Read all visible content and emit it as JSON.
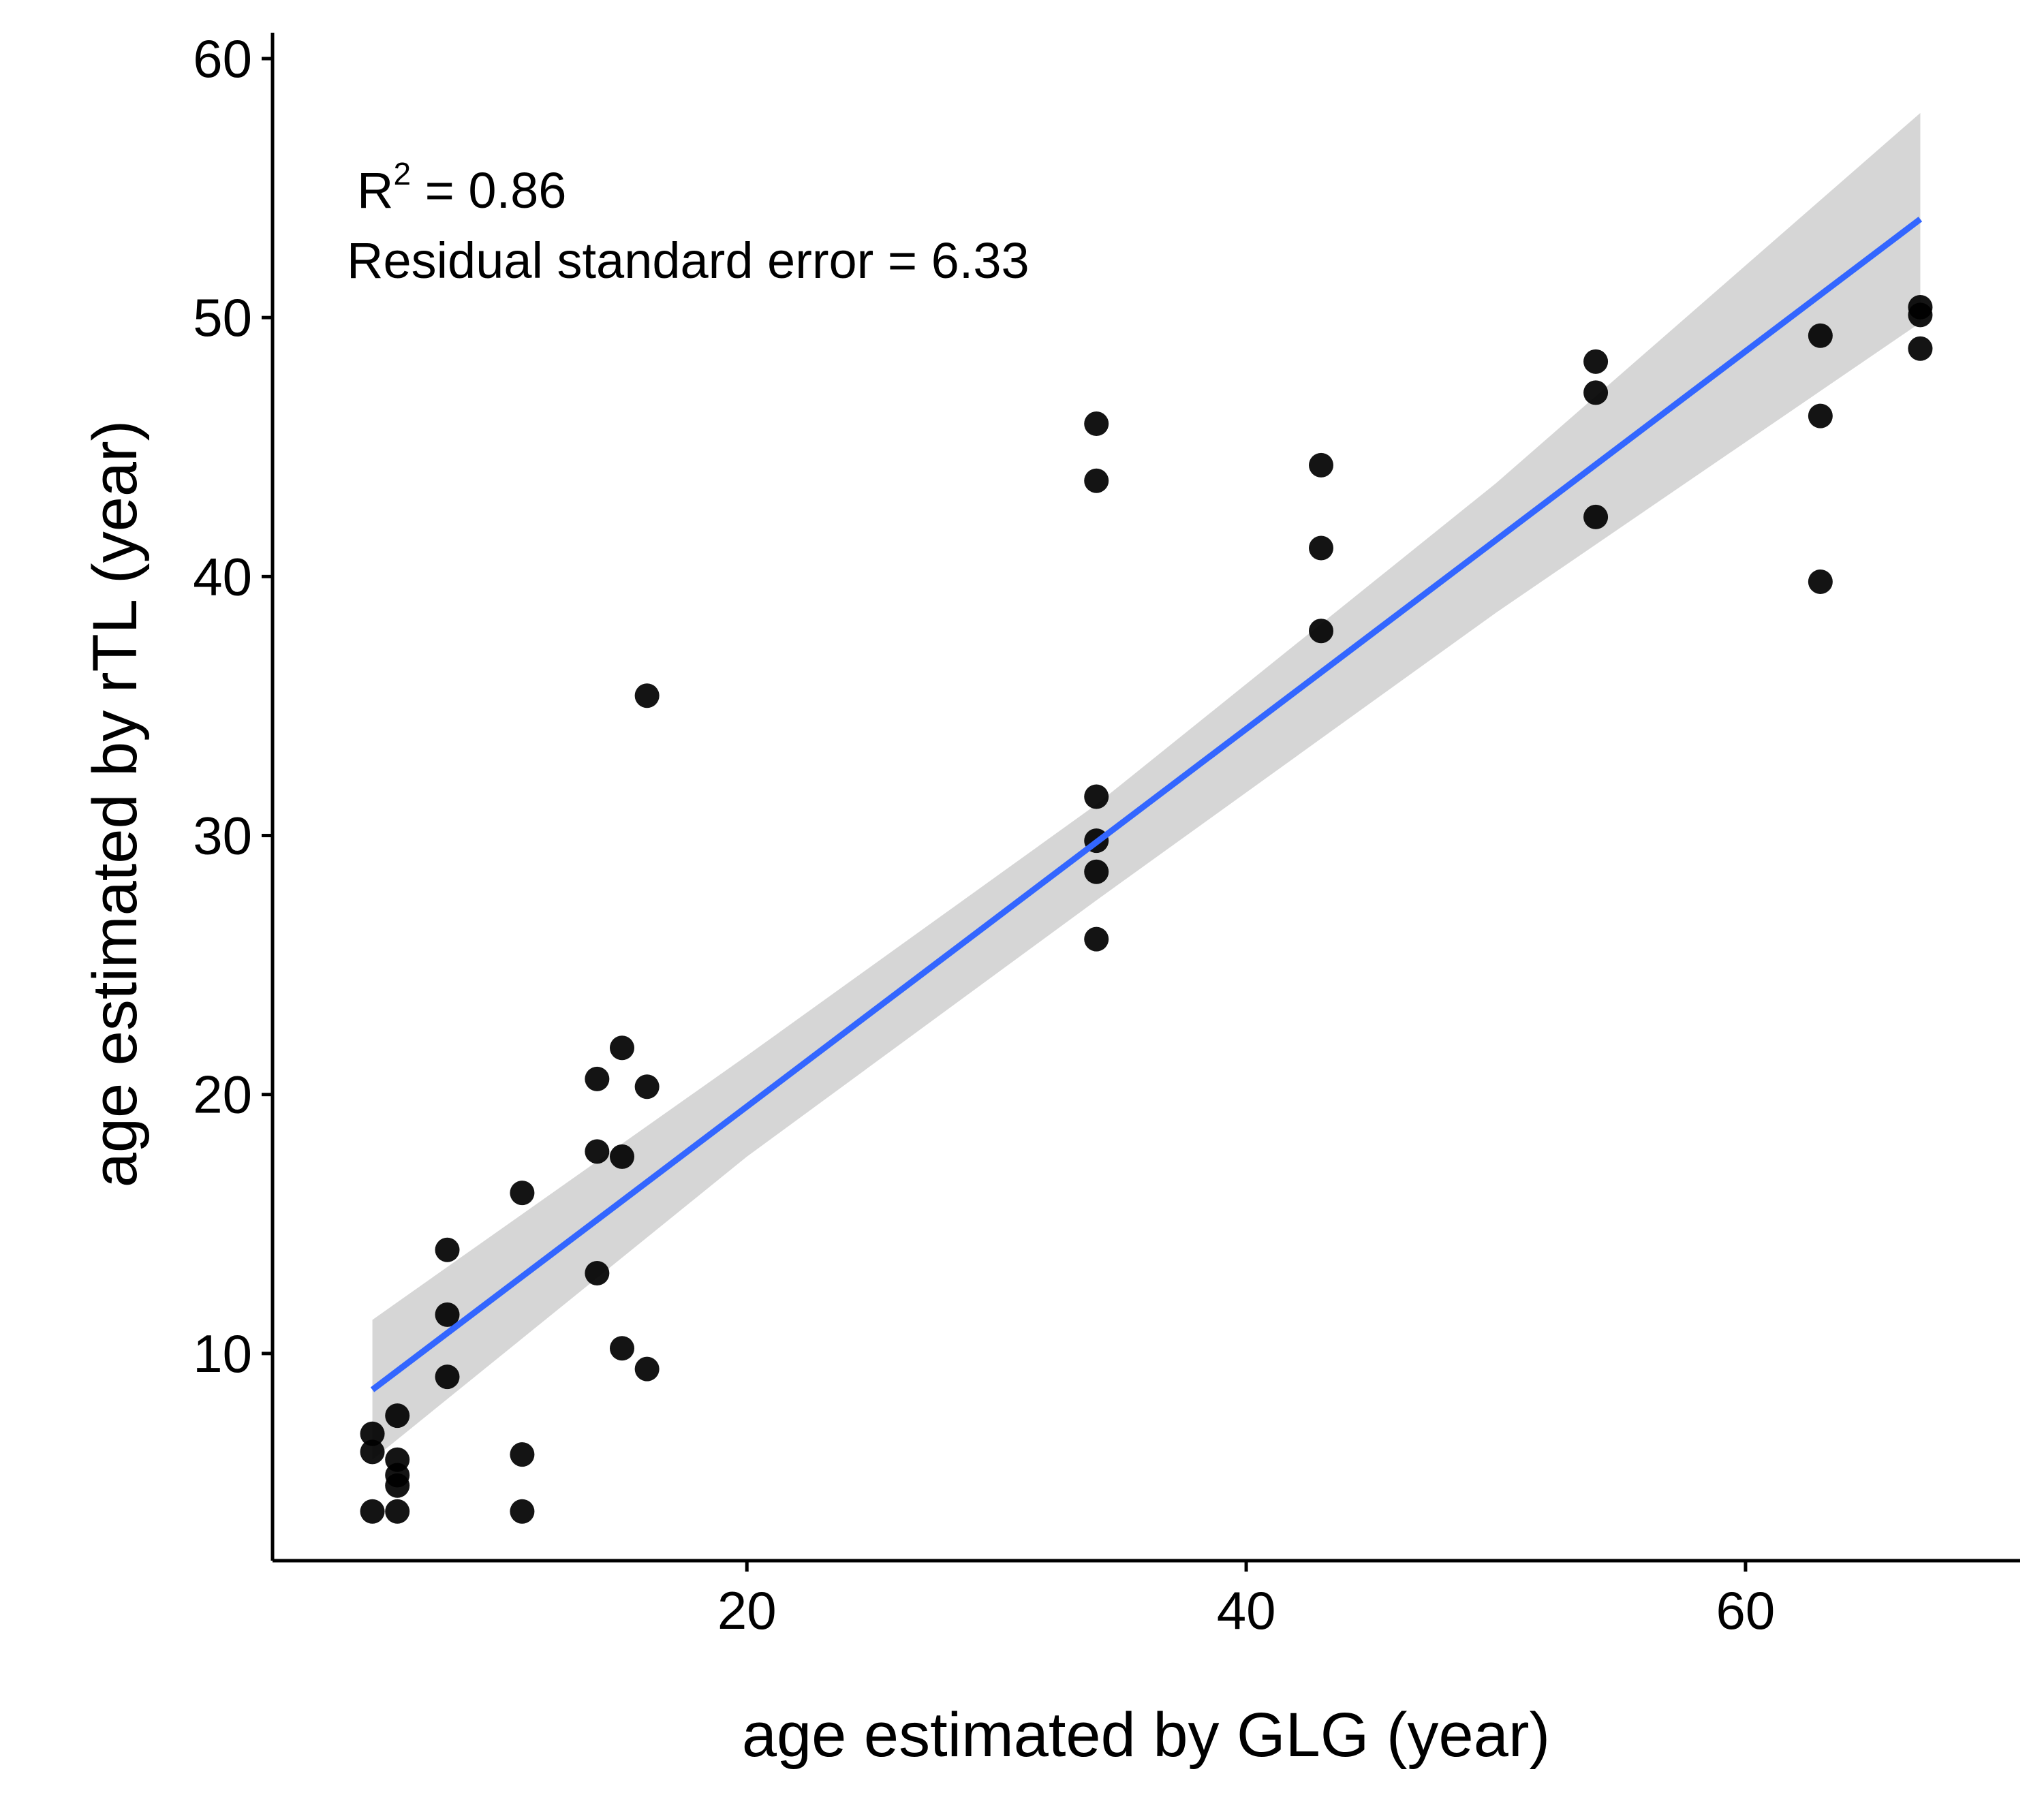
{
  "chart_data": {
    "type": "scatter",
    "xlabel": "age estimated by GLG (year)",
    "ylabel": "age estimated by rTL (year)",
    "xlim": [
      1,
      71
    ],
    "ylim": [
      2,
      61
    ],
    "x_ticks": [
      20,
      40,
      60
    ],
    "y_ticks": [
      10,
      20,
      30,
      40,
      50,
      60
    ],
    "grid": false,
    "annotation": {
      "r2_label": "R",
      "r2_sup": "2",
      "r2_value": " = 0.86",
      "rse": "Residual standard error = 6.33"
    },
    "points": [
      [
        5,
        6.9
      ],
      [
        5,
        6.2
      ],
      [
        5,
        3.9
      ],
      [
        6,
        7.6
      ],
      [
        6,
        5.9
      ],
      [
        6,
        5.3
      ],
      [
        6,
        4.9
      ],
      [
        6,
        3.9
      ],
      [
        8,
        14.0
      ],
      [
        8,
        11.5
      ],
      [
        8,
        9.1
      ],
      [
        11,
        16.2
      ],
      [
        11,
        6.1
      ],
      [
        11,
        3.9
      ],
      [
        14,
        20.6
      ],
      [
        14,
        17.8
      ],
      [
        14,
        13.1
      ],
      [
        15,
        21.8
      ],
      [
        15,
        17.6
      ],
      [
        15,
        10.2
      ],
      [
        16,
        35.4
      ],
      [
        16,
        20.3
      ],
      [
        16,
        9.4
      ],
      [
        34,
        45.9
      ],
      [
        34,
        43.7
      ],
      [
        34,
        31.5
      ],
      [
        34,
        29.8
      ],
      [
        34,
        28.6
      ],
      [
        34,
        26.0
      ],
      [
        43,
        44.3
      ],
      [
        43,
        41.1
      ],
      [
        43,
        37.9
      ],
      [
        54,
        48.3
      ],
      [
        54,
        47.1
      ],
      [
        54,
        42.3
      ],
      [
        63,
        49.3
      ],
      [
        63,
        46.2
      ],
      [
        63,
        39.8
      ],
      [
        67,
        50.4
      ],
      [
        67,
        50.1
      ],
      [
        67,
        48.8
      ]
    ],
    "fit_line": {
      "color": "#3366FF",
      "x": [
        5,
        67
      ],
      "y": [
        8.6,
        53.8
      ]
    },
    "confidence_band": {
      "color": "#D6D6D6",
      "x": [
        5,
        20,
        34,
        50,
        67
      ],
      "lower": [
        5.9,
        17.6,
        27.5,
        38.6,
        49.8
      ],
      "upper": [
        11.3,
        21.5,
        31.2,
        43.6,
        57.9
      ]
    },
    "point_color": "#000000"
  }
}
